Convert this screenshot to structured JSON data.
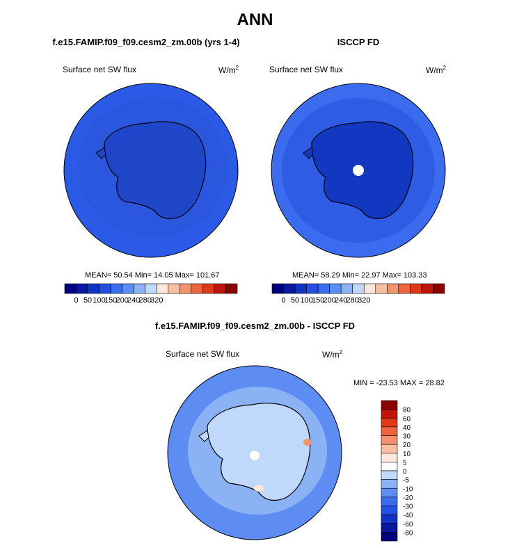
{
  "figure": {
    "title": "ANN"
  },
  "panels": [
    {
      "subtitle": "f.e15.FAMIP.f09_f09.cesm2_zm.00b (yrs 1-4)",
      "left_label": "Surface net SW flux",
      "units_base": "W/m",
      "units_exp": "2",
      "stats": "MEAN= 50.54  Min= 14.05  Max= 101.67"
    },
    {
      "subtitle": "ISCCP FD",
      "left_label": "Surface net SW flux",
      "units_base": "W/m",
      "units_exp": "2",
      "stats": "MEAN= 58.29  Min= 22.97  Max= 103.33"
    },
    {
      "subtitle": "f.e15.FAMIP.f09_f09.cesm2_zm.00b - ISCCP FD",
      "left_label": "Surface net SW flux",
      "units_base": "W/m",
      "units_exp": "2",
      "stats": "MIN = -23.53 MAX =  28.82"
    }
  ],
  "colorbars": {
    "abs": {
      "colors": [
        "#00007f",
        "#0a18a0",
        "#1133c4",
        "#2350e2",
        "#3a6df0",
        "#5d8cf3",
        "#8cb2f6",
        "#c0d8fa",
        "#fde7da",
        "#f8bfa0",
        "#f4926c",
        "#ec6540",
        "#df3a18",
        "#c21408",
        "#8b0000"
      ],
      "labels": [
        "0",
        "50",
        "100",
        "150",
        "200",
        "240",
        "280",
        "320"
      ]
    },
    "diff": {
      "colors": [
        "#8b0000",
        "#c21408",
        "#df3a18",
        "#ec6540",
        "#f4926c",
        "#f8bfa0",
        "#fde7da",
        "#ffffff",
        "#c0d8fa",
        "#8cb2f6",
        "#5d8cf3",
        "#3a6df0",
        "#2350e2",
        "#1133c4",
        "#0a18a0",
        "#00007f"
      ],
      "labels": [
        "80",
        "60",
        "40",
        "30",
        "20",
        "10",
        "5",
        "0",
        "-5",
        "-10",
        "-20",
        "-30",
        "-40",
        "-60",
        "-80"
      ]
    }
  },
  "chart_data": [
    {
      "type": "heatmap",
      "title": "Surface net SW flux",
      "subtitle": "f.e15.FAMIP.f09_f09.cesm2_zm.00b (yrs 1-4)",
      "units": "W/m2",
      "projection": "polar-stereographic-south",
      "mean": 50.54,
      "min": 14.05,
      "max": 101.67,
      "levels": [
        0,
        50,
        100,
        150,
        200,
        240,
        280,
        320
      ]
    },
    {
      "type": "heatmap",
      "title": "Surface net SW flux",
      "subtitle": "ISCCP FD",
      "units": "W/m2",
      "projection": "polar-stereographic-south",
      "mean": 58.29,
      "min": 22.97,
      "max": 103.33,
      "levels": [
        0,
        50,
        100,
        150,
        200,
        240,
        280,
        320
      ]
    },
    {
      "type": "heatmap",
      "title": "Surface net SW flux",
      "subtitle": "f.e15.FAMIP.f09_f09.cesm2_zm.00b - ISCCP FD",
      "units": "W/m2",
      "projection": "polar-stereographic-south",
      "min": -23.53,
      "max": 28.82,
      "levels": [
        80,
        60,
        40,
        30,
        20,
        10,
        5,
        0,
        -5,
        -10,
        -20,
        -30,
        -40,
        -60,
        -80
      ]
    }
  ]
}
